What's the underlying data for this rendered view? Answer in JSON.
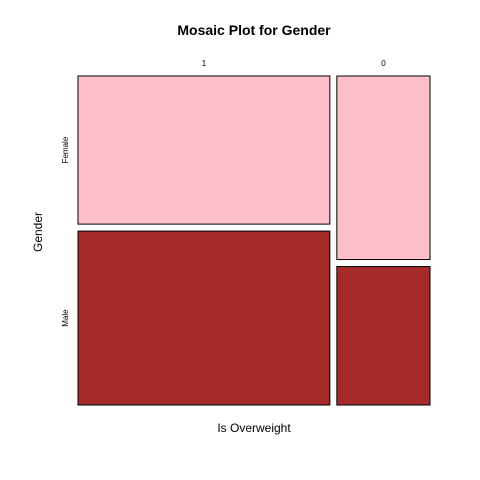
{
  "chart_data": {
    "type": "mosaic",
    "title": "Mosaic Plot for Gender",
    "xlabel": "Is Overweight",
    "ylabel": "Gender",
    "x_categories": [
      "1",
      "0"
    ],
    "y_categories": [
      "Female",
      "Male"
    ],
    "x_proportions": [
      0.73,
      0.27
    ],
    "cells": [
      {
        "x": "1",
        "y": "Female",
        "proportion": 0.46,
        "color": "#FFC0CB"
      },
      {
        "x": "1",
        "y": "Male",
        "proportion": 0.54,
        "color": "#A52A2A"
      },
      {
        "x": "0",
        "y": "Female",
        "proportion": 0.57,
        "color": "#FFC0CB"
      },
      {
        "x": "0",
        "y": "Male",
        "proportion": 0.43,
        "color": "#A52A2A"
      }
    ]
  }
}
